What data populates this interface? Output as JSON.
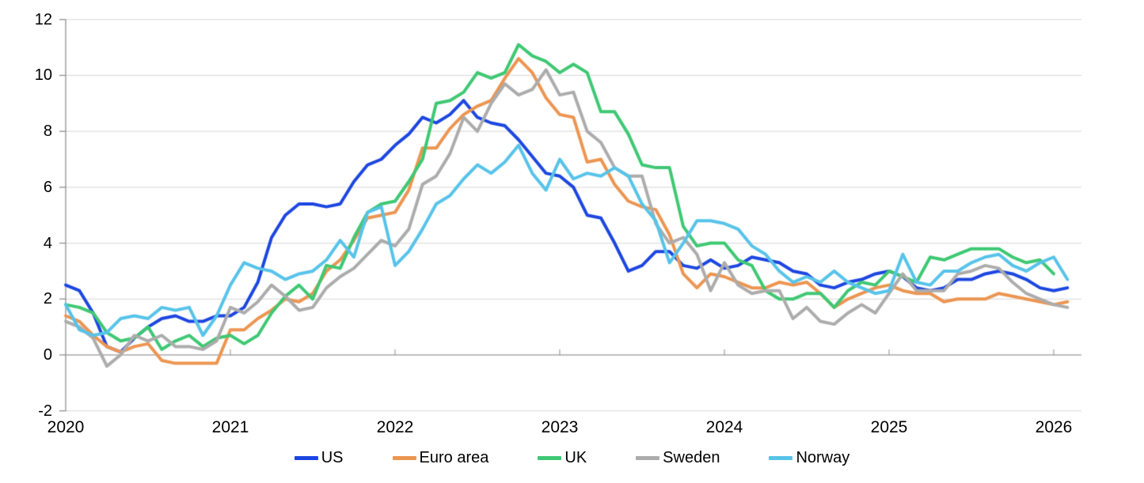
{
  "chart_data": {
    "type": "line",
    "title": "",
    "xlabel": "",
    "ylabel": "",
    "frequency": "monthly",
    "x_start": "2020-01",
    "x_end": "2026-02",
    "ylim": [
      -2,
      12
    ],
    "grid": true,
    "legend_position": "bottom",
    "x_tick_labels": [
      "2020",
      "2021",
      "2022",
      "2023",
      "2024",
      "2025",
      "2026"
    ],
    "y_tick_labels": [
      "12",
      "10",
      "8",
      "6",
      "4",
      "2",
      "0",
      "-2"
    ],
    "y_ticks": [
      12,
      10,
      8,
      6,
      4,
      2,
      0,
      -2
    ],
    "style": {
      "grid_color": "#dedede",
      "zero_line_color": "#a8a8a8",
      "axis_color": "#8f8f8f",
      "background": "#ffffff",
      "line_width": 4
    },
    "series": [
      {
        "name": "US",
        "color": "#1c46e0",
        "values": [
          2.5,
          2.3,
          1.5,
          0.3,
          0.1,
          0.6,
          1.0,
          1.3,
          1.4,
          1.2,
          1.2,
          1.4,
          1.4,
          1.7,
          2.6,
          4.2,
          5.0,
          5.4,
          5.4,
          5.3,
          5.4,
          6.2,
          6.8,
          7.0,
          7.5,
          7.9,
          8.5,
          8.3,
          8.6,
          9.1,
          8.5,
          8.3,
          8.2,
          7.7,
          7.1,
          6.5,
          6.4,
          6.0,
          5.0,
          4.9,
          4.0,
          3.0,
          3.2,
          3.7,
          3.7,
          3.2,
          3.1,
          3.4,
          3.1,
          3.2,
          3.5,
          3.4,
          3.3,
          3.0,
          2.9,
          2.5,
          2.4,
          2.6,
          2.7,
          2.9,
          3.0,
          2.8,
          2.4,
          2.3,
          2.4,
          2.7,
          2.7,
          2.9,
          3.0,
          2.9,
          2.7,
          2.4,
          2.3,
          2.4
        ]
      },
      {
        "name": "Euro area",
        "color": "#ec9551",
        "values": [
          1.4,
          1.2,
          0.7,
          0.3,
          0.1,
          0.3,
          0.4,
          -0.2,
          -0.3,
          -0.3,
          -0.3,
          -0.3,
          0.9,
          0.9,
          1.3,
          1.6,
          2.0,
          1.9,
          2.2,
          3.0,
          3.4,
          4.1,
          4.9,
          5.0,
          5.1,
          5.9,
          7.4,
          7.4,
          8.1,
          8.6,
          8.9,
          9.1,
          9.9,
          10.6,
          10.1,
          9.2,
          8.6,
          8.5,
          6.9,
          7.0,
          6.1,
          5.5,
          5.3,
          5.2,
          4.3,
          2.9,
          2.4,
          2.9,
          2.8,
          2.6,
          2.4,
          2.4,
          2.6,
          2.5,
          2.6,
          2.2,
          1.7,
          2.0,
          2.2,
          2.4,
          2.5,
          2.3,
          2.2,
          2.2,
          1.9,
          2.0,
          2.0,
          2.0,
          2.2,
          2.1,
          2.0,
          1.9,
          1.8,
          1.9
        ]
      },
      {
        "name": "UK",
        "color": "#3ec873",
        "values": [
          1.8,
          1.7,
          1.5,
          0.8,
          0.5,
          0.6,
          1.0,
          0.2,
          0.5,
          0.7,
          0.3,
          0.6,
          0.7,
          0.4,
          0.7,
          1.5,
          2.1,
          2.5,
          2.0,
          3.2,
          3.1,
          4.2,
          5.1,
          5.4,
          5.5,
          6.2,
          7.0,
          9.0,
          9.1,
          9.4,
          10.1,
          9.9,
          10.1,
          11.1,
          10.7,
          10.5,
          10.1,
          10.4,
          10.1,
          8.7,
          8.7,
          7.9,
          6.8,
          6.7,
          6.7,
          4.6,
          3.9,
          4.0,
          4.0,
          3.4,
          3.2,
          2.3,
          2.0,
          2.0,
          2.2,
          2.2,
          1.7,
          2.3,
          2.6,
          2.5,
          3.0,
          2.8,
          2.6,
          3.5,
          3.4,
          3.6,
          3.8,
          3.8,
          3.8,
          3.5,
          3.3,
          3.4,
          2.9
        ]
      },
      {
        "name": "Sweden",
        "color": "#acacac",
        "values": [
          1.2,
          1.0,
          0.6,
          -0.4,
          0.0,
          0.7,
          0.5,
          0.7,
          0.3,
          0.3,
          0.2,
          0.5,
          1.7,
          1.5,
          1.9,
          2.5,
          2.1,
          1.6,
          1.7,
          2.4,
          2.8,
          3.1,
          3.6,
          4.1,
          3.9,
          4.5,
          6.1,
          6.4,
          7.2,
          8.5,
          8.0,
          9.0,
          9.7,
          9.3,
          9.5,
          10.2,
          9.3,
          9.4,
          8.0,
          7.6,
          6.7,
          6.4,
          6.4,
          4.7,
          4.0,
          4.2,
          3.6,
          2.3,
          3.3,
          2.5,
          2.2,
          2.3,
          2.3,
          1.3,
          1.7,
          1.2,
          1.1,
          1.5,
          1.8,
          1.5,
          2.2,
          2.9,
          2.3,
          2.3,
          2.3,
          2.9,
          3.0,
          3.2,
          3.1,
          2.6,
          2.2,
          2.0,
          1.8,
          1.7
        ]
      },
      {
        "name": "Norway",
        "color": "#57c3e9",
        "values": [
          1.8,
          0.9,
          0.7,
          0.8,
          1.3,
          1.4,
          1.3,
          1.7,
          1.6,
          1.7,
          0.7,
          1.4,
          2.5,
          3.3,
          3.1,
          3.0,
          2.7,
          2.9,
          3.0,
          3.4,
          4.1,
          3.5,
          5.1,
          5.3,
          3.2,
          3.7,
          4.5,
          5.4,
          5.7,
          6.3,
          6.8,
          6.5,
          6.9,
          7.5,
          6.5,
          5.9,
          7.0,
          6.3,
          6.5,
          6.4,
          6.7,
          6.4,
          5.4,
          4.8,
          3.3,
          4.0,
          4.8,
          4.8,
          4.7,
          4.5,
          3.9,
          3.6,
          3.0,
          2.6,
          2.8,
          2.6,
          3.0,
          2.6,
          2.4,
          2.2,
          2.3,
          3.6,
          2.6,
          2.5,
          3.0,
          3.0,
          3.3,
          3.5,
          3.6,
          3.2,
          3.0,
          3.3,
          3.5,
          2.7
        ]
      }
    ]
  }
}
